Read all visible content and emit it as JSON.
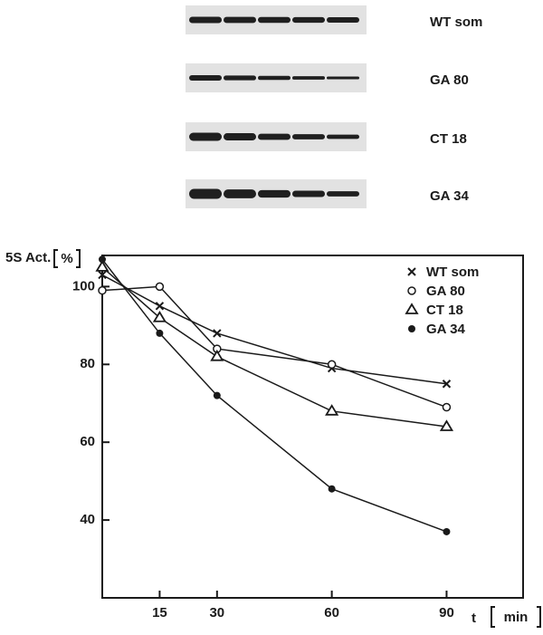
{
  "chart_data": {
    "type": "line",
    "y_label": "5S Act.",
    "y_unit": "%",
    "x_label": "t",
    "x_unit": "min",
    "x": [
      0,
      15,
      30,
      60,
      90
    ],
    "series": [
      {
        "name": "WT som",
        "marker": "x",
        "color": "#1a1a1a",
        "values": [
          103,
          95,
          88,
          79,
          75
        ]
      },
      {
        "name": "GA 80",
        "marker": "open-circle",
        "color": "#1a1a1a",
        "values": [
          99,
          100,
          84,
          80,
          69
        ]
      },
      {
        "name": "CT 18",
        "marker": "open-triangle",
        "color": "#1a1a1a",
        "values": [
          105,
          92,
          82,
          68,
          64
        ]
      },
      {
        "name": "GA 34",
        "marker": "filled-circle",
        "color": "#1a1a1a",
        "values": [
          107,
          88,
          72,
          48,
          37
        ]
      }
    ],
    "xlim": [
      0,
      110
    ],
    "xticks": [
      15,
      30,
      60,
      90
    ],
    "ylim": [
      20,
      108
    ],
    "yticks": [
      40,
      60,
      80,
      100
    ],
    "legend": "top-right"
  }
}
